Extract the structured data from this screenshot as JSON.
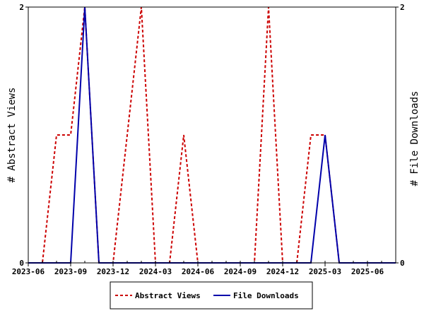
{
  "chart_data": {
    "type": "line",
    "x": [
      "2023-06",
      "2023-07",
      "2023-08",
      "2023-09",
      "2023-10",
      "2023-11",
      "2023-12",
      "2024-01",
      "2024-02",
      "2024-03",
      "2024-04",
      "2024-05",
      "2024-06",
      "2024-07",
      "2024-08",
      "2024-09",
      "2024-10",
      "2024-11",
      "2024-12",
      "2025-01",
      "2025-02",
      "2025-03",
      "2025-04",
      "2025-05",
      "2025-06",
      "2025-07",
      "2025-08"
    ],
    "x_tick_labels": [
      "2023-06",
      "2023-09",
      "2023-12",
      "2024-03",
      "2024-06",
      "2024-09",
      "2024-12",
      "2025-03",
      "2025-06"
    ],
    "series": [
      {
        "name": "Abstract Views",
        "axis": "left",
        "color": "#cc0000",
        "style": "dashed",
        "values": [
          0,
          0,
          1,
          1,
          2,
          0,
          0,
          1,
          2,
          0,
          0,
          1,
          0,
          0,
          0,
          0,
          0,
          2,
          0,
          0,
          1,
          1,
          0,
          0,
          0,
          0,
          0
        ]
      },
      {
        "name": "File Downloads",
        "axis": "right",
        "color": "#0000aa",
        "style": "solid",
        "values": [
          0,
          0,
          0,
          0,
          2,
          0,
          0,
          0,
          0,
          0,
          0,
          0,
          0,
          0,
          0,
          0,
          0,
          0,
          0,
          0,
          0,
          1,
          0,
          0,
          0,
          0,
          0
        ]
      }
    ],
    "ylabel_left": "# Abstract Views",
    "ylabel_right": "# File Downloads",
    "ylim_left": [
      0,
      2
    ],
    "ylim_right": [
      0,
      2
    ],
    "y_ticks_left": [
      "0",
      "2"
    ],
    "y_ticks_right": [
      "0",
      "2"
    ],
    "grid": false,
    "legend_position": "bottom"
  }
}
